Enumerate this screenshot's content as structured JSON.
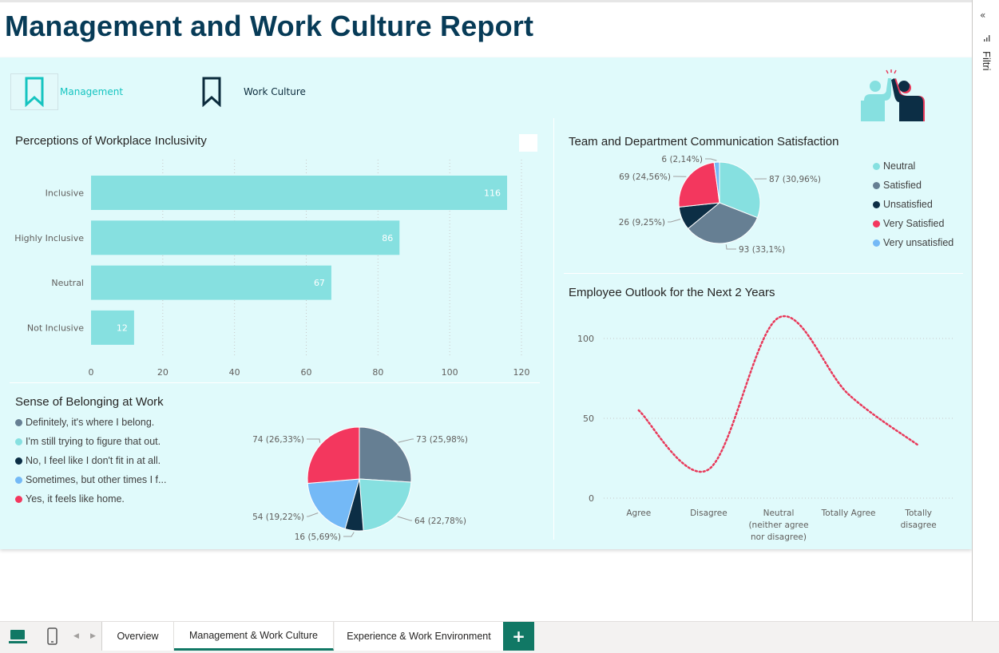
{
  "report": {
    "title": "Management and Work Culture Report"
  },
  "nav": {
    "management_label": "Management",
    "work_culture_label": "Work Culture"
  },
  "colors": {
    "canvas_bg": "#e0fafb",
    "title": "#073b57",
    "bar": "#86e0e0",
    "line": "#e8395a",
    "tab_accent": "#117865"
  },
  "icons": [
    "bookmark-icon",
    "high-five-icon",
    "collapse-icon",
    "filter-icon",
    "desktop-view-icon",
    "mobile-view-icon",
    "prev-page-icon",
    "next-page-icon",
    "add-page-icon"
  ],
  "visuals": {
    "inclusivity": {
      "title": "Perceptions of Workplace Inclusivity"
    },
    "belonging": {
      "title": "Sense of Belonging at Work"
    },
    "communication": {
      "title": "Team and Department Communication Satisfaction"
    },
    "outlook": {
      "title": "Employee Outlook for the Next 2 Years"
    }
  },
  "chart_data": [
    {
      "type": "bar",
      "orientation": "horizontal",
      "title": "Perceptions of Workplace Inclusivity",
      "categories": [
        "Inclusive",
        "Highly Inclusive",
        "Neutral",
        "Not Inclusive"
      ],
      "values": [
        116,
        86,
        67,
        12
      ],
      "xlim": [
        0,
        120
      ],
      "xticks": [
        0,
        20,
        40,
        60,
        80,
        100,
        120
      ],
      "grid": true,
      "color": "#86e0e0"
    },
    {
      "type": "pie",
      "title": "Sense of Belonging at Work",
      "legend_position": "left",
      "slices": [
        {
          "name": "Definitely, it's where I belong.",
          "legend_label": "Definitely, it's where I belong.",
          "value": 73,
          "label": "73 (25,98%)",
          "color": "#667f93"
        },
        {
          "name": "I'm still trying to figure that out.",
          "legend_label": "I'm still trying to figure that out.",
          "value": 64,
          "label": "64 (22,78%)",
          "color": "#86e0e0"
        },
        {
          "name": "No, I feel like I don't fit in at all.",
          "legend_label": "No, I feel like I don't fit in at all.",
          "value": 16,
          "label": "16 (5,69%)",
          "color": "#0c2e45"
        },
        {
          "name": "Sometimes, but other times I feel out of place.",
          "legend_label": "Sometimes, but other times I f...",
          "value": 54,
          "label": "54 (19,22%)",
          "color": "#74b9f6"
        },
        {
          "name": "Yes, it feels like home.",
          "legend_label": "Yes, it feels like home.",
          "value": 74,
          "label": "74 (26,33%)",
          "color": "#f3375e"
        }
      ]
    },
    {
      "type": "pie",
      "title": "Team and Department Communication Satisfaction",
      "legend_position": "right",
      "slices": [
        {
          "name": "Neutral",
          "legend_label": "Neutral",
          "value": 87,
          "label": "87 (30,96%)",
          "color": "#86e0e0"
        },
        {
          "name": "Satisfied",
          "legend_label": "Satisfied",
          "value": 93,
          "label": "93 (33,1%)",
          "color": "#667f93"
        },
        {
          "name": "Unsatisfied",
          "legend_label": "Unsatisfied",
          "value": 26,
          "label": "26 (9,25%)",
          "color": "#0c2e45"
        },
        {
          "name": "Very Satisfied",
          "legend_label": "Very Satisfied",
          "value": 69,
          "label": "69 (24,56%)",
          "color": "#f3375e"
        },
        {
          "name": "Very unsatisfied",
          "legend_label": "Very unsatisfied",
          "value": 6,
          "label": "6 (2,14%)",
          "color": "#74b9f6"
        }
      ]
    },
    {
      "type": "line",
      "title": "Employee Outlook for the Next 2 Years",
      "categories": [
        "Agree",
        "Disagree",
        "Neutral (neither agree nor disagree)",
        "Totally Agree",
        "Totally disagree"
      ],
      "category_labels": [
        [
          "Agree"
        ],
        [
          "Disagree"
        ],
        [
          "Neutral",
          "(neither agree",
          "nor disagree)"
        ],
        [
          "Totally Agree"
        ],
        [
          "Totally",
          "disagree"
        ]
      ],
      "values": [
        55,
        18,
        113,
        65,
        33
      ],
      "ylim": [
        0,
        120
      ],
      "yticks": [
        0,
        50,
        100
      ],
      "line_style": "dotted",
      "smooth": true,
      "grid": true,
      "color": "#e8395a"
    }
  ],
  "right_panel": {
    "label": "Filtri"
  },
  "bottom_tabs": [
    {
      "label": "Overview",
      "active": false
    },
    {
      "label": "Management & Work Culture",
      "active": true
    },
    {
      "label": "Experience & Work Environment",
      "active": false
    }
  ],
  "add_tab_label": "+"
}
